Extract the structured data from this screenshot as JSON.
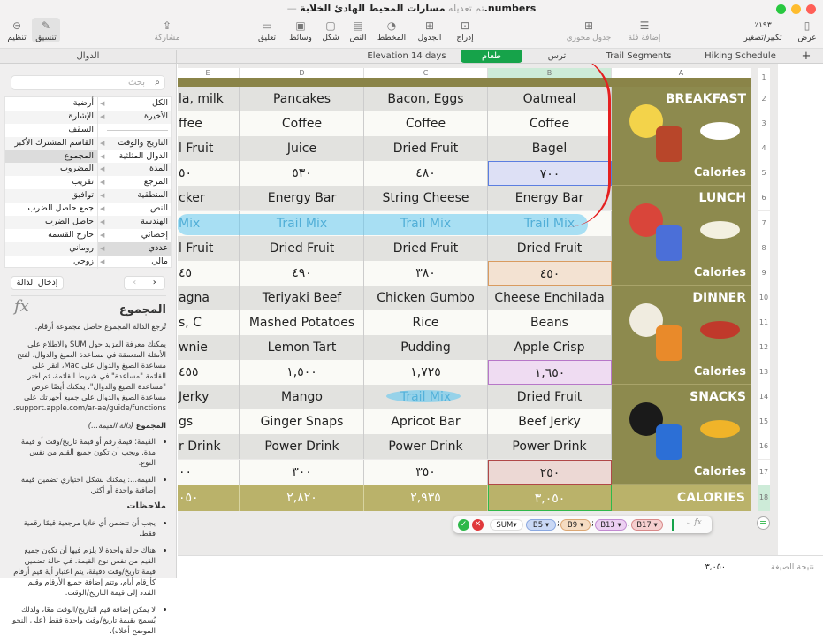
{
  "window": {
    "title": "مسارات المحيط الهادئ الخلابة.numbers",
    "status": "— تم تعديله"
  },
  "toolbar": {
    "view": "عرض",
    "zoom_value": "٪١٩٣",
    "zoom": "تكبير/تصغير",
    "add_category": "إضافة فئة",
    "pivot_table": "جدول محوري",
    "insert": "إدراج",
    "table": "الجدول",
    "chart": "المخطط",
    "text": "النص",
    "shape": "شكل",
    "media": "وسائط",
    "comment": "تعليق",
    "share": "مشاركة",
    "format": "تنسيق",
    "organize": "تنظيم"
  },
  "tabs": {
    "add": "+",
    "items": [
      "Hiking Schedule",
      "Trail Segments",
      "ترس",
      "طعام",
      "Elevation 14 days"
    ],
    "active": 3,
    "sidebar_title": "الدوال"
  },
  "sidebar": {
    "search_placeholder": "بحث",
    "categories": [
      "الكل",
      "الأخيرة",
      "",
      "التاريخ والوقت",
      "الدوال المثلثية",
      "المدة",
      "المرجع",
      "المنطقية",
      "النص",
      "الهندسة",
      "إحصائي",
      "عددي",
      "مالي"
    ],
    "functions": [
      "أرضية",
      "الإشارة",
      "السقف",
      "القاسم المشترك الأكبر",
      "المجموع",
      "المضروب",
      "تقريب",
      "توافيق",
      "جمع حاصل الضرب",
      "حاصل الضرب",
      "خارج القسمة",
      "روماني",
      "زوجي"
    ],
    "selected_category": "عددي",
    "selected_function": "المجموع",
    "insert_button": "إدخال الدالة",
    "help": {
      "title": "المجموع",
      "summary": "تُرجع الدالة المجموع حاصل مجموعة أرقام.",
      "more": "يمكنك معرفة المزيد حول SUM والاطلاع على الأمثلة المتعمقة في مساعدة الصيغ والدوال. لفتح مساعدة الصيغ والدوال على Mac، انقر على القائمة \"مساعدة\" في شريط القائمة، ثم اختر \"مساعدة الصيغ والدوال\". يمكنك أيضًا عرض مساعدة الصيغ والدوال على جميع أجهزتك على support.apple.com/ar-ae/guide/functions.",
      "syntax_name": "المجموع",
      "syntax_args": "(دالة القيمة...)",
      "args": [
        "القيمة: قيمة رقم أو قيمة تاريخ/وقت أو قيمة مدة. ويجب أن تكون جميع القيم من نفس النوع.",
        "القيمة...: يمكنك بشكل اختياري تضمين قيمة إضافية واحدة أو أكثر."
      ],
      "notes_title": "ملاحظات",
      "notes": [
        "يجب أن تتضمن أي خلايا مرجعية قيمًا رقمية فقط.",
        "هناك حالة واحدة لا يلزم فيها أن تكون جميع القيم من نفس نوع القيمة. في حالة تضمين قيمة تاريخ/وقت دقيقة، يتم اعتبار أية قيم أرقام كأرقام أيام، وتتم إضافة جميع الأرقام وقيم المُدد إلى قيمة التاريخ/الوقت.",
        "لا يمكن إضافة قيم التاريخ/الوقت معًا، ولذلك يُسمح بقيمة تاريخ/وقت واحدة فقط (على النحو الموضح أعلاه)."
      ]
    }
  },
  "table": {
    "columns": [
      "E",
      "D",
      "C",
      "B",
      "A"
    ],
    "rows": [
      [
        "la, milk",
        "Pancakes",
        "Bacon, Eggs",
        "Oatmeal"
      ],
      [
        "ffee",
        "Coffee",
        "Coffee",
        "Coffee"
      ],
      [
        "l Fruit",
        "Juice",
        "Dried Fruit",
        "Bagel"
      ],
      [
        "٥٠",
        "٥٣٠",
        "٤٨٠",
        "٧٠٠"
      ],
      [
        "cker",
        "Energy Bar",
        "String Cheese",
        "Energy Bar"
      ],
      [
        "Mix",
        "Trail Mix",
        "Trail Mix",
        "Trail Mix"
      ],
      [
        "l Fruit",
        "Dried Fruit",
        "Dried Fruit",
        "Dried Fruit"
      ],
      [
        "٤٥",
        "٤٩٠",
        "٣٨٠",
        "٤٥٠"
      ],
      [
        "agna",
        "Teriyaki Beef",
        "Chicken Gumbo",
        "Cheese Enchilada"
      ],
      [
        "s, C",
        "Mashed Potatoes",
        "Rice",
        "Beans"
      ],
      [
        "wnie",
        "Lemon Tart",
        "Pudding",
        "Apple Crisp"
      ],
      [
        "٤٥٥",
        "١,٥٠٠",
        "١,٧٢٥",
        "١,٦٥٠"
      ],
      [
        "Jerky",
        "Mango",
        "Trail Mix",
        "Dried Fruit"
      ],
      [
        "gs",
        "Ginger Snaps",
        "Apricot Bar",
        "Beef Jerky"
      ],
      [
        "r Drink",
        "Power Drink",
        "Power Drink",
        "Power Drink"
      ],
      [
        "٠٠",
        "٣٠٠",
        "٣٥٠",
        "٢٥٠"
      ]
    ],
    "totals": [
      "٠٥٠",
      "٢,٨٢٠",
      "٢,٩٣٥",
      "٣,٠٥٠"
    ],
    "meals": [
      {
        "title": "BREAKFAST",
        "calories": "Calories"
      },
      {
        "title": "LUNCH",
        "calories": "Calories"
      },
      {
        "title": "DINNER",
        "calories": "Calories"
      },
      {
        "title": "SNACKS",
        "calories": "Calories"
      }
    ],
    "total_label": "CALORIES",
    "row_numbers": [
      "1",
      "2",
      "3",
      "4",
      "5",
      "6",
      "7",
      "8",
      "9",
      "10",
      "11",
      "12",
      "13",
      "14",
      "15",
      "16",
      "17",
      "18"
    ]
  },
  "formula": {
    "function": "SUM",
    "refs": [
      "B5",
      "B9",
      "B13",
      "B17"
    ],
    "separator": ";",
    "fx": "fx",
    "colors": [
      "#c9d8f5",
      "#f5dcc2",
      "#ecd0f2",
      "#f5cfcf"
    ]
  },
  "status": {
    "label": "نتيجة الصيغة",
    "value": "٣,٠٥٠"
  }
}
